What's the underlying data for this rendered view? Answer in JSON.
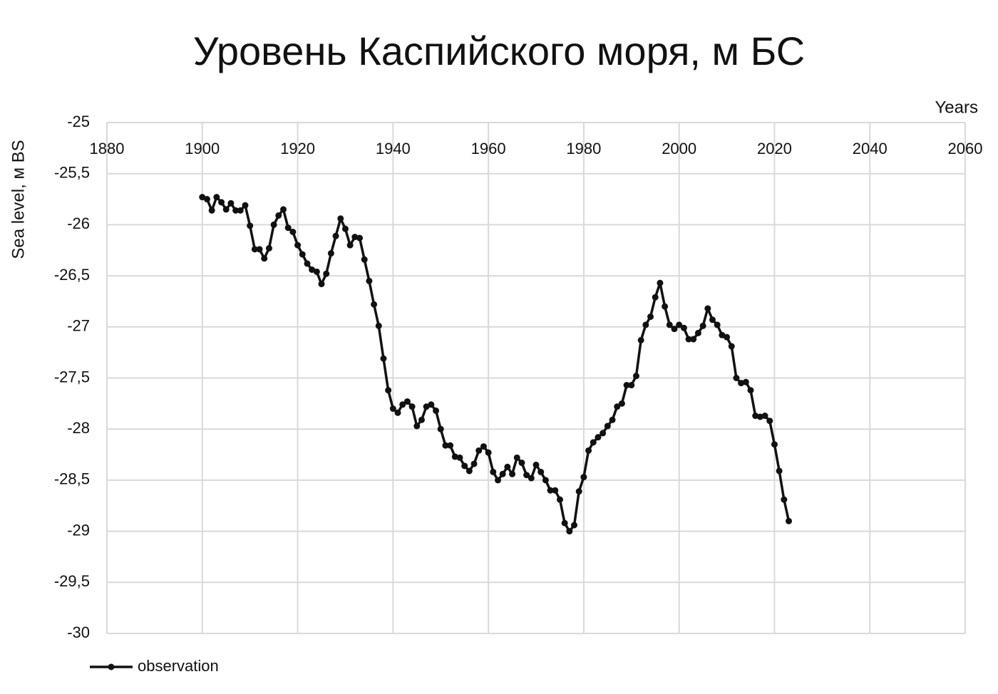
{
  "chart_data": {
    "type": "line",
    "title": "Уровень Каспийского моря, м БС",
    "x_label": "Years",
    "y_label": "Sea level, м BS",
    "xlim": [
      1880,
      2060
    ],
    "xticks": [
      1880,
      1900,
      1920,
      1940,
      1960,
      1980,
      2000,
      2020,
      2040,
      2060
    ],
    "ylim": [
      -30,
      -25
    ],
    "yticks": [
      -25,
      {
        "value": -25.5,
        "label": "-25,5"
      },
      -26,
      {
        "value": -26.5,
        "label": "-26,5"
      },
      -27,
      {
        "value": -27.5,
        "label": "-27,5"
      },
      -28,
      {
        "value": -28.5,
        "label": "-28,5"
      },
      -29,
      {
        "value": -29.5,
        "label": "-29,5"
      },
      -30
    ],
    "grid": true,
    "legend": "bottom-left",
    "x": [
      1900,
      1901,
      1902,
      1903,
      1904,
      1905,
      1906,
      1907,
      1908,
      1909,
      1910,
      1911,
      1912,
      1913,
      1914,
      1915,
      1916,
      1917,
      1918,
      1919,
      1920,
      1921,
      1922,
      1923,
      1924,
      1925,
      1926,
      1927,
      1928,
      1929,
      1930,
      1931,
      1932,
      1933,
      1934,
      1935,
      1936,
      1937,
      1938,
      1939,
      1940,
      1941,
      1942,
      1943,
      1944,
      1945,
      1946,
      1947,
      1948,
      1949,
      1950,
      1951,
      1952,
      1953,
      1954,
      1955,
      1956,
      1957,
      1958,
      1959,
      1960,
      1961,
      1962,
      1963,
      1964,
      1965,
      1966,
      1967,
      1968,
      1969,
      1970,
      1971,
      1972,
      1973,
      1974,
      1975,
      1976,
      1977,
      1978,
      1979,
      1980,
      1981,
      1982,
      1983,
      1984,
      1985,
      1986,
      1987,
      1988,
      1989,
      1990,
      1991,
      1992,
      1993,
      1994,
      1995,
      1996,
      1997,
      1998,
      1999,
      2000,
      2001,
      2002,
      2003,
      2004,
      2005,
      2006,
      2007,
      2008,
      2009,
      2010,
      2011,
      2012,
      2013,
      2014,
      2015,
      2016,
      2017,
      2018,
      2019,
      2020,
      2021,
      2022,
      2023
    ],
    "series": [
      {
        "name": "observation",
        "color": "#111111",
        "values": [
          -25.73,
          -25.75,
          -25.86,
          -25.73,
          -25.78,
          -25.85,
          -25.79,
          -25.86,
          -25.86,
          -25.81,
          -26.01,
          -26.24,
          -26.24,
          -26.33,
          -26.23,
          -26.0,
          -25.91,
          -25.85,
          -26.03,
          -26.07,
          -26.2,
          -26.29,
          -26.38,
          -26.44,
          -26.46,
          -26.58,
          -26.48,
          -26.28,
          -26.11,
          -25.94,
          -26.04,
          -26.2,
          -26.12,
          -26.13,
          -26.34,
          -26.55,
          -26.78,
          -26.99,
          -27.31,
          -27.62,
          -27.8,
          -27.84,
          -27.76,
          -27.73,
          -27.78,
          -27.97,
          -27.91,
          -27.78,
          -27.76,
          -27.82,
          -28.0,
          -28.16,
          -28.16,
          -28.27,
          -28.28,
          -28.36,
          -28.41,
          -28.34,
          -28.21,
          -28.17,
          -28.23,
          -28.42,
          -28.5,
          -28.44,
          -28.37,
          -28.44,
          -28.28,
          -28.33,
          -28.45,
          -28.48,
          -28.35,
          -28.42,
          -28.5,
          -28.6,
          -28.6,
          -28.69,
          -28.92,
          -29.0,
          -28.94,
          -28.61,
          -28.47,
          -28.21,
          -28.13,
          -28.08,
          -28.04,
          -27.97,
          -27.91,
          -27.78,
          -27.75,
          -27.57,
          -27.57,
          -27.48,
          -27.13,
          -26.98,
          -26.9,
          -26.71,
          -26.57,
          -26.8,
          -26.98,
          -27.02,
          -26.98,
          -27.01,
          -27.12,
          -27.12,
          -27.06,
          -26.99,
          -26.82,
          -26.93,
          -26.98,
          -27.08,
          -27.1,
          -27.19,
          -27.5,
          -27.55,
          -27.54,
          -27.62,
          -27.87,
          -27.88,
          -27.87,
          -27.92,
          -28.15,
          -28.41,
          -28.69,
          -28.9
        ]
      }
    ]
  }
}
